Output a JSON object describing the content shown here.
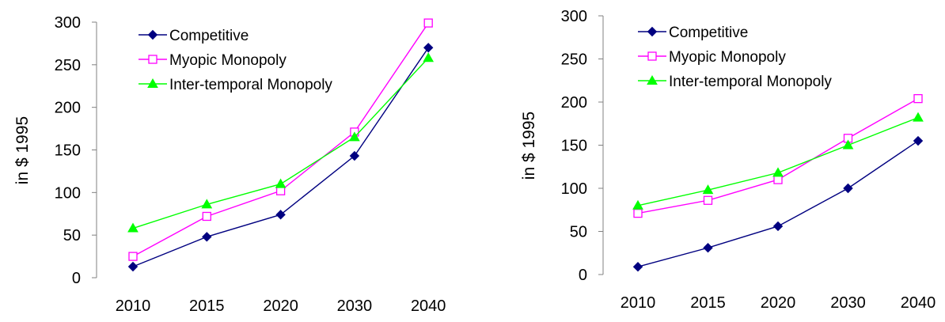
{
  "chart_data": [
    {
      "type": "line",
      "title": "",
      "xlabel": "",
      "ylabel": "in $ 1995",
      "categories": [
        "2010",
        "2015",
        "2020",
        "2030",
        "2040"
      ],
      "ylim": [
        0,
        300
      ],
      "yticks": [
        0,
        50,
        100,
        150,
        200,
        250,
        300
      ],
      "grid": false,
      "legend": "top-left",
      "series": [
        {
          "name": "Competitive",
          "values": [
            13,
            48,
            74,
            143,
            270
          ],
          "color": "#000080",
          "marker": "diamond-filled"
        },
        {
          "name": "Myopic Monopoly",
          "values": [
            25,
            72,
            102,
            171,
            299
          ],
          "color": "#ff00ff",
          "marker": "square-open"
        },
        {
          "name": "Inter-temporal Monopoly",
          "values": [
            58,
            86,
            110,
            165,
            258
          ],
          "color": "#00ff00",
          "marker": "triangle-filled"
        }
      ]
    },
    {
      "type": "line",
      "title": "",
      "xlabel": "",
      "ylabel": "in $ 1995",
      "categories": [
        "2010",
        "2015",
        "2020",
        "2030",
        "2040"
      ],
      "ylim": [
        0,
        300
      ],
      "yticks": [
        0,
        50,
        100,
        150,
        200,
        250,
        300
      ],
      "grid": false,
      "legend": "top-left",
      "series": [
        {
          "name": "Competitive",
          "values": [
            9,
            31,
            56,
            100,
            155
          ],
          "color": "#000080",
          "marker": "diamond-filled"
        },
        {
          "name": "Myopic Monopoly",
          "values": [
            71,
            86,
            110,
            158,
            204
          ],
          "color": "#ff00ff",
          "marker": "square-open"
        },
        {
          "name": "Inter-temporal Monopoly",
          "values": [
            80,
            98,
            118,
            150,
            182
          ],
          "color": "#00ff00",
          "marker": "triangle-filled"
        }
      ]
    }
  ]
}
